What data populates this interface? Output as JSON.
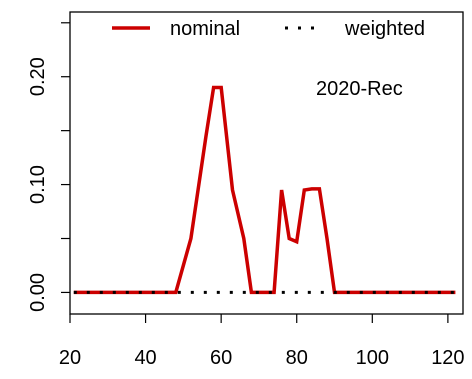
{
  "chart_data": {
    "type": "line",
    "annotation": "2020-Rec",
    "xlim": [
      20,
      124
    ],
    "ylim": [
      -0.02,
      0.26
    ],
    "x_ticks": [
      20,
      40,
      60,
      80,
      100,
      120
    ],
    "y_ticks": [
      0.0,
      0.1,
      0.2
    ],
    "y_tick_labels": [
      "0.00",
      "0.10",
      "0.20"
    ],
    "grid": false,
    "legend": {
      "position": "top"
    },
    "series": [
      {
        "name": "nominal",
        "color": "#cc0000",
        "style": "solid",
        "x": [
          21,
          48,
          52,
          56,
          58,
          60,
          63,
          66,
          68,
          72,
          74,
          76,
          78,
          80,
          82,
          84,
          86,
          88,
          90,
          92,
          122
        ],
        "y": [
          0.0,
          0.0,
          0.05,
          0.145,
          0.19,
          0.19,
          0.095,
          0.05,
          0.0,
          0.0,
          0.0,
          0.095,
          0.05,
          0.047,
          0.095,
          0.096,
          0.096,
          0.05,
          0.0,
          0.0,
          0.0
        ]
      },
      {
        "name": "weighted",
        "color": "#000000",
        "style": "dotted",
        "x": [
          21,
          122
        ],
        "y": [
          0.0,
          0.0
        ]
      }
    ]
  }
}
